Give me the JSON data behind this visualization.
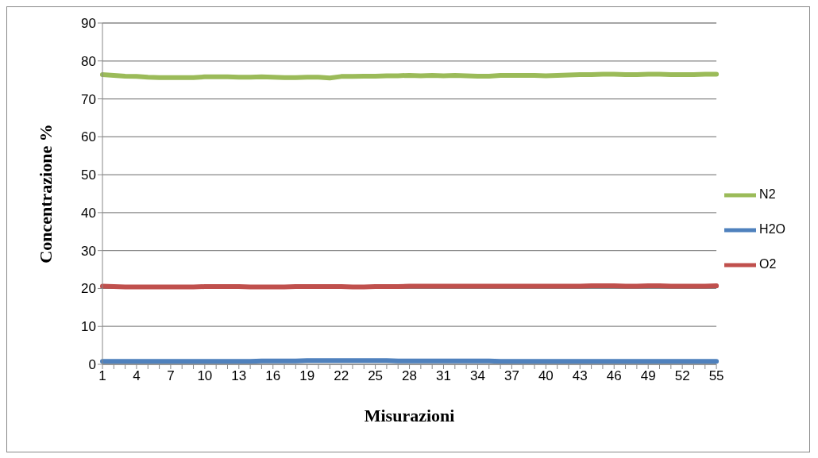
{
  "chart_data": {
    "type": "line",
    "xlabel": "Misurazioni",
    "ylabel": "Concentrazione %",
    "categories": [
      "1",
      null,
      null,
      "4",
      null,
      null,
      "7",
      null,
      null,
      "10",
      null,
      null,
      "13",
      null,
      null,
      "16",
      null,
      null,
      "19",
      null,
      null,
      "22",
      null,
      null,
      "25",
      null,
      null,
      "28",
      null,
      null,
      "31",
      null,
      null,
      "34",
      null,
      null,
      "37",
      null,
      null,
      "40",
      null,
      null,
      "43",
      null,
      null,
      "46",
      null,
      null,
      "49",
      null,
      null,
      "52",
      null,
      null,
      "55"
    ],
    "series": [
      {
        "name": "N2",
        "color": "#9bbb59",
        "values": [
          76.4,
          76.2,
          76.0,
          75.9,
          75.7,
          75.6,
          75.6,
          75.6,
          75.6,
          75.8,
          75.8,
          75.8,
          75.7,
          75.7,
          75.8,
          75.7,
          75.6,
          75.6,
          75.7,
          75.7,
          75.5,
          75.9,
          75.9,
          76.0,
          76.0,
          76.1,
          76.1,
          76.2,
          76.1,
          76.2,
          76.1,
          76.2,
          76.1,
          76.0,
          76.0,
          76.2,
          76.2,
          76.2,
          76.2,
          76.1,
          76.2,
          76.3,
          76.4,
          76.4,
          76.5,
          76.5,
          76.4,
          76.4,
          76.5,
          76.5,
          76.4,
          76.4,
          76.4,
          76.5,
          76.5
        ]
      },
      {
        "name": "H2O",
        "color": "#4f81bd",
        "values": [
          0.8,
          0.8,
          0.8,
          0.8,
          0.8,
          0.8,
          0.8,
          0.8,
          0.8,
          0.8,
          0.8,
          0.8,
          0.8,
          0.8,
          0.9,
          0.9,
          0.9,
          0.9,
          1.0,
          1.0,
          1.0,
          1.0,
          1.0,
          1.0,
          1.0,
          1.0,
          0.9,
          0.9,
          0.9,
          0.9,
          0.9,
          0.9,
          0.9,
          0.9,
          0.9,
          0.8,
          0.8,
          0.8,
          0.8,
          0.8,
          0.8,
          0.8,
          0.8,
          0.8,
          0.8,
          0.8,
          0.8,
          0.8,
          0.8,
          0.8,
          0.8,
          0.8,
          0.8,
          0.8,
          0.8
        ]
      },
      {
        "name": "O2",
        "color": "#c0504d",
        "values": [
          20.6,
          20.5,
          20.4,
          20.4,
          20.4,
          20.4,
          20.4,
          20.4,
          20.4,
          20.5,
          20.5,
          20.5,
          20.5,
          20.4,
          20.4,
          20.4,
          20.4,
          20.5,
          20.5,
          20.5,
          20.5,
          20.5,
          20.4,
          20.4,
          20.5,
          20.5,
          20.5,
          20.6,
          20.6,
          20.6,
          20.6,
          20.6,
          20.6,
          20.6,
          20.6,
          20.6,
          20.6,
          20.6,
          20.6,
          20.6,
          20.6,
          20.6,
          20.6,
          20.7,
          20.7,
          20.7,
          20.6,
          20.6,
          20.7,
          20.7,
          20.6,
          20.6,
          20.6,
          20.6,
          20.7
        ]
      }
    ],
    "ylim": [
      0,
      90
    ],
    "yticks": [
      0,
      10,
      20,
      30,
      40,
      50,
      60,
      70,
      80,
      90
    ],
    "grid": "y",
    "legend": "right",
    "marker": "none",
    "line_style": "solid"
  }
}
